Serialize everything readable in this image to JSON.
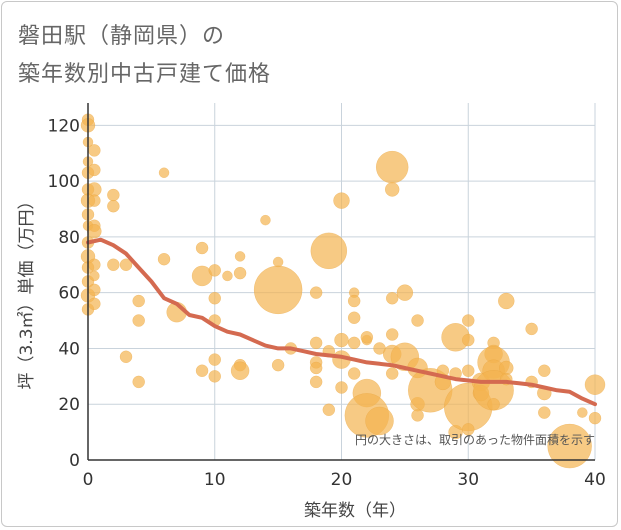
{
  "chart_data": {
    "type": "scatter",
    "title_line1": "磐田駅（静岡県）の",
    "title_line2": "築年数別中古戸建て価格",
    "xlabel": "築年数（年）",
    "ylabel": "坪（3.3㎡）単価（万円）",
    "xlim": [
      0,
      40
    ],
    "ylim": [
      0,
      128
    ],
    "x_ticks": [
      0,
      10,
      20,
      30,
      40
    ],
    "y_ticks": [
      0,
      20,
      40,
      60,
      80,
      100,
      120
    ],
    "note": "円の大きさは、取引のあった物件面積を示す",
    "colors": {
      "bubble": "#f4b350",
      "bubble_stroke": "#e8a23a",
      "trend": "#d46a50",
      "grid": "#c9d3dc",
      "axis": "#333333"
    },
    "scatter_points": [
      {
        "x": 0,
        "y": 122,
        "size": 6
      },
      {
        "x": 0,
        "y": 120,
        "size": 7
      },
      {
        "x": 0,
        "y": 114,
        "size": 5
      },
      {
        "x": 0,
        "y": 107,
        "size": 5
      },
      {
        "x": 0,
        "y": 103,
        "size": 6
      },
      {
        "x": 0,
        "y": 97,
        "size": 6
      },
      {
        "x": 0,
        "y": 93,
        "size": 7
      },
      {
        "x": 0,
        "y": 88,
        "size": 6
      },
      {
        "x": 0,
        "y": 84,
        "size": 5
      },
      {
        "x": 0,
        "y": 78,
        "size": 6
      },
      {
        "x": 0,
        "y": 73,
        "size": 7
      },
      {
        "x": 0,
        "y": 69,
        "size": 6
      },
      {
        "x": 0,
        "y": 64,
        "size": 6
      },
      {
        "x": 0,
        "y": 59,
        "size": 7
      },
      {
        "x": 0,
        "y": 54,
        "size": 6
      },
      {
        "x": 0.5,
        "y": 111,
        "size": 6
      },
      {
        "x": 0.5,
        "y": 104,
        "size": 6
      },
      {
        "x": 0.5,
        "y": 97,
        "size": 7
      },
      {
        "x": 0.5,
        "y": 93,
        "size": 6
      },
      {
        "x": 0.5,
        "y": 84,
        "size": 6
      },
      {
        "x": 0.5,
        "y": 82,
        "size": 7
      },
      {
        "x": 0.5,
        "y": 70,
        "size": 6
      },
      {
        "x": 0.5,
        "y": 66,
        "size": 5
      },
      {
        "x": 0.5,
        "y": 61,
        "size": 6
      },
      {
        "x": 0.5,
        "y": 56,
        "size": 6
      },
      {
        "x": 2,
        "y": 95,
        "size": 6
      },
      {
        "x": 2,
        "y": 91,
        "size": 6
      },
      {
        "x": 2,
        "y": 70,
        "size": 6
      },
      {
        "x": 3,
        "y": 70,
        "size": 6
      },
      {
        "x": 3,
        "y": 37,
        "size": 6
      },
      {
        "x": 4,
        "y": 57,
        "size": 6
      },
      {
        "x": 4,
        "y": 50,
        "size": 6
      },
      {
        "x": 4,
        "y": 28,
        "size": 6
      },
      {
        "x": 6,
        "y": 103,
        "size": 5
      },
      {
        "x": 6,
        "y": 72,
        "size": 6
      },
      {
        "x": 7,
        "y": 53,
        "size": 10
      },
      {
        "x": 9,
        "y": 76,
        "size": 6
      },
      {
        "x": 9,
        "y": 66,
        "size": 10
      },
      {
        "x": 10,
        "y": 68,
        "size": 6
      },
      {
        "x": 10,
        "y": 58,
        "size": 6
      },
      {
        "x": 10,
        "y": 50,
        "size": 6
      },
      {
        "x": 10,
        "y": 36,
        "size": 6
      },
      {
        "x": 9,
        "y": 32,
        "size": 6
      },
      {
        "x": 10,
        "y": 30,
        "size": 6
      },
      {
        "x": 11,
        "y": 66,
        "size": 5
      },
      {
        "x": 12,
        "y": 73,
        "size": 5
      },
      {
        "x": 12,
        "y": 67,
        "size": 6
      },
      {
        "x": 12,
        "y": 34,
        "size": 6
      },
      {
        "x": 12,
        "y": 32,
        "size": 9
      },
      {
        "x": 14,
        "y": 86,
        "size": 5
      },
      {
        "x": 15,
        "y": 71,
        "size": 5
      },
      {
        "x": 15,
        "y": 61,
        "size": 24
      },
      {
        "x": 15,
        "y": 34,
        "size": 6
      },
      {
        "x": 16,
        "y": 40,
        "size": 6
      },
      {
        "x": 18,
        "y": 60,
        "size": 6
      },
      {
        "x": 18,
        "y": 42,
        "size": 6
      },
      {
        "x": 18,
        "y": 35,
        "size": 6
      },
      {
        "x": 18,
        "y": 33,
        "size": 6
      },
      {
        "x": 18,
        "y": 28,
        "size": 6
      },
      {
        "x": 19,
        "y": 75,
        "size": 18
      },
      {
        "x": 19,
        "y": 39,
        "size": 6
      },
      {
        "x": 19,
        "y": 18,
        "size": 6
      },
      {
        "x": 20,
        "y": 93,
        "size": 8
      },
      {
        "x": 20,
        "y": 43,
        "size": 7
      },
      {
        "x": 20,
        "y": 36,
        "size": 9
      },
      {
        "x": 20,
        "y": 26,
        "size": 6
      },
      {
        "x": 21,
        "y": 60,
        "size": 5
      },
      {
        "x": 21,
        "y": 57,
        "size": 6
      },
      {
        "x": 21,
        "y": 51,
        "size": 6
      },
      {
        "x": 21,
        "y": 42,
        "size": 6
      },
      {
        "x": 21,
        "y": 31,
        "size": 6
      },
      {
        "x": 22,
        "y": 43,
        "size": 5
      },
      {
        "x": 22,
        "y": 44,
        "size": 6
      },
      {
        "x": 22,
        "y": 24,
        "size": 14
      },
      {
        "x": 22,
        "y": 16,
        "size": 22
      },
      {
        "x": 23,
        "y": 14,
        "size": 14
      },
      {
        "x": 23,
        "y": 40,
        "size": 6
      },
      {
        "x": 24,
        "y": 105,
        "size": 16
      },
      {
        "x": 24,
        "y": 97,
        "size": 7
      },
      {
        "x": 24,
        "y": 58,
        "size": 6
      },
      {
        "x": 24,
        "y": 45,
        "size": 6
      },
      {
        "x": 24,
        "y": 38,
        "size": 9
      },
      {
        "x": 24,
        "y": 31,
        "size": 6
      },
      {
        "x": 25,
        "y": 60,
        "size": 8
      },
      {
        "x": 25,
        "y": 37,
        "size": 14
      },
      {
        "x": 26,
        "y": 50,
        "size": 6
      },
      {
        "x": 26,
        "y": 33,
        "size": 10
      },
      {
        "x": 26,
        "y": 20,
        "size": 7
      },
      {
        "x": 26,
        "y": 16,
        "size": 6
      },
      {
        "x": 27,
        "y": 25,
        "size": 22
      },
      {
        "x": 28,
        "y": 28,
        "size": 8
      },
      {
        "x": 28,
        "y": 32,
        "size": 6
      },
      {
        "x": 29,
        "y": 44,
        "size": 14
      },
      {
        "x": 29,
        "y": 31,
        "size": 6
      },
      {
        "x": 29,
        "y": 10,
        "size": 7
      },
      {
        "x": 30,
        "y": 50,
        "size": 6
      },
      {
        "x": 30,
        "y": 43,
        "size": 6
      },
      {
        "x": 30,
        "y": 32,
        "size": 6
      },
      {
        "x": 30,
        "y": 19,
        "size": 24
      },
      {
        "x": 30,
        "y": 11,
        "size": 6
      },
      {
        "x": 31,
        "y": 28,
        "size": 9
      },
      {
        "x": 31,
        "y": 24,
        "size": 8
      },
      {
        "x": 32,
        "y": 42,
        "size": 6
      },
      {
        "x": 32,
        "y": 38,
        "size": 9
      },
      {
        "x": 32,
        "y": 35,
        "size": 16
      },
      {
        "x": 32,
        "y": 32,
        "size": 11
      },
      {
        "x": 32,
        "y": 25,
        "size": 20
      },
      {
        "x": 32,
        "y": 20,
        "size": 6
      },
      {
        "x": 33,
        "y": 57,
        "size": 8
      },
      {
        "x": 33,
        "y": 33,
        "size": 7
      },
      {
        "x": 33,
        "y": 29,
        "size": 6
      },
      {
        "x": 35,
        "y": 47,
        "size": 6
      },
      {
        "x": 35,
        "y": 28,
        "size": 6
      },
      {
        "x": 36,
        "y": 32,
        "size": 6
      },
      {
        "x": 36,
        "y": 24,
        "size": 7
      },
      {
        "x": 36,
        "y": 17,
        "size": 6
      },
      {
        "x": 38,
        "y": 5,
        "size": 22
      },
      {
        "x": 39,
        "y": 17,
        "size": 5
      },
      {
        "x": 40,
        "y": 27,
        "size": 10
      },
      {
        "x": 40,
        "y": 15,
        "size": 6
      }
    ],
    "trend": {
      "x": [
        0,
        1,
        2,
        3,
        4,
        5,
        6,
        7,
        8,
        9,
        10,
        11,
        12,
        13,
        14,
        15,
        16,
        17,
        18,
        19,
        20,
        21,
        22,
        23,
        24,
        25,
        26,
        27,
        28,
        29,
        30,
        31,
        32,
        33,
        34,
        35,
        36,
        37,
        38,
        39,
        40
      ],
      "y": [
        78,
        79,
        77,
        74,
        69,
        64,
        58,
        56,
        52,
        51,
        48,
        46,
        45,
        43,
        41,
        40,
        40,
        39,
        38,
        37.5,
        37,
        36,
        35,
        34.5,
        34,
        33,
        32,
        31,
        30,
        29,
        28.5,
        28,
        28,
        28,
        27.5,
        27,
        26,
        25,
        24.5,
        22,
        20
      ]
    }
  }
}
